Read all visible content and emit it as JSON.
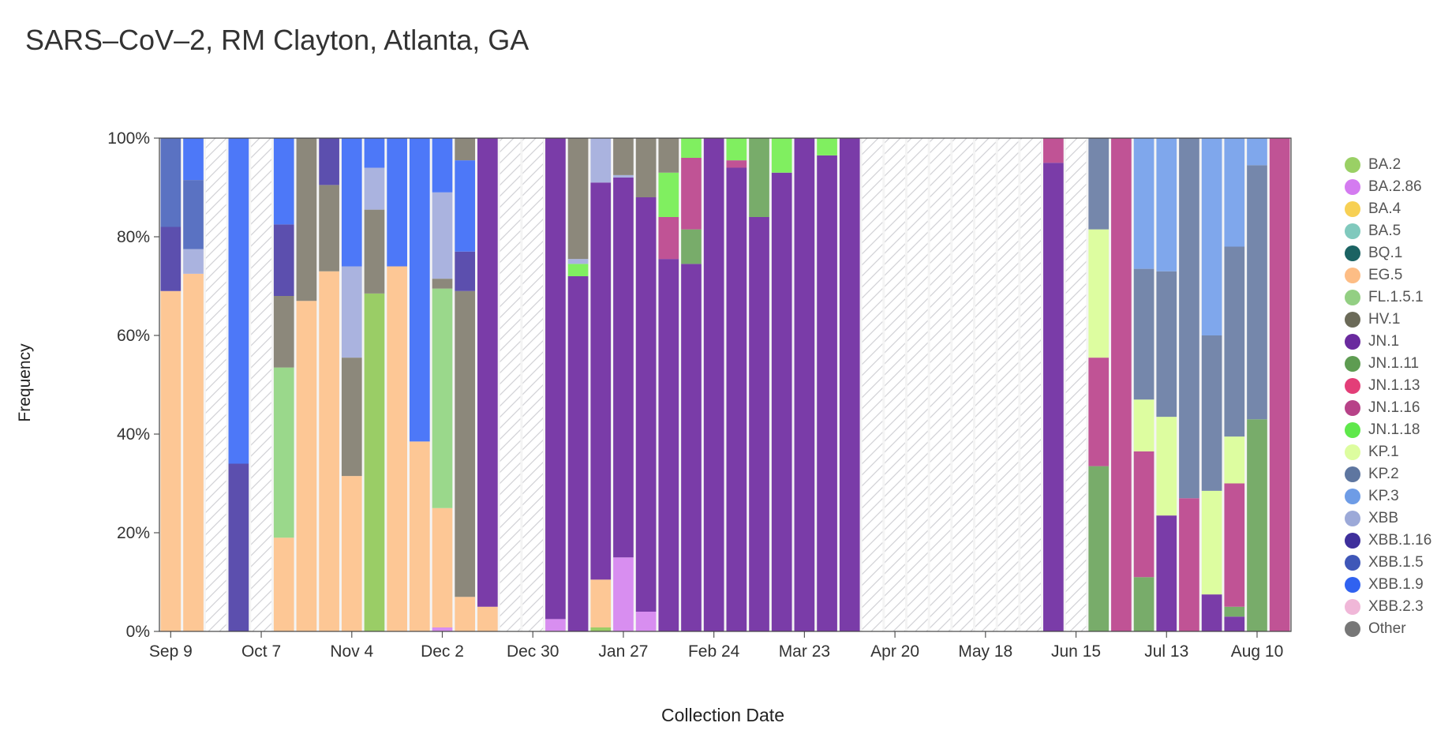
{
  "chart_data": {
    "type": "bar",
    "stacked": true,
    "title": "SARS–CoV–2, RM Clayton, Atlanta, GA",
    "xlabel": "Collection Date",
    "ylabel": "Frequency",
    "ylim": [
      0,
      100
    ],
    "y_ticks": [
      "0%",
      "20%",
      "40%",
      "60%",
      "80%",
      "100%"
    ],
    "x_tick_labels": [
      "Sep 9",
      "Oct 7",
      "Nov 4",
      "Dec 2",
      "Dec 30",
      "Jan 27",
      "Feb 24",
      "Mar 23",
      "Apr 20",
      "May 18",
      "Jun 15",
      "Jul 13",
      "Aug 10"
    ],
    "x_tick_positions": [
      0,
      4,
      8,
      12,
      16,
      20,
      24,
      28,
      32,
      36,
      40,
      44,
      48
    ],
    "num_slots": 50,
    "lineage_colors": {
      "BA.2": "#9acd66",
      "BA.2.86": "#d88ef0",
      "BA.4": "#f7d054",
      "BA.5": "#80c9bd",
      "BQ.1": "#1b6f6f",
      "EG.5": "#fdc795",
      "FL.1.5.1": "#9ad88b",
      "HV.1": "#737060",
      "JN.1": "#7a3ca8",
      "JN.1.11": "#78ac6a",
      "JN.1.13": "#e0427a",
      "JN.1.16": "#c05395",
      "JN.1.18": "#80ef60",
      "KP.1": "#ddfda0",
      "KP.2": "#7587ab",
      "KP.3": "#7fa7ec",
      "XBB": "#aab3df",
      "XBB.1.16": "#5c4fae",
      "XBB.1.5": "#5a72c2",
      "XBB.1.9": "#4d78f8",
      "XBB.2.3": "#f0b7d8",
      "Other": "#8c887b"
    },
    "legend": [
      {
        "label": "BA.2",
        "color": "#9ad065"
      },
      {
        "label": "BA.2.86",
        "color": "#d47bf0"
      },
      {
        "label": "BA.4",
        "color": "#f7d054"
      },
      {
        "label": "BA.5",
        "color": "#80c9bd"
      },
      {
        "label": "BQ.1",
        "color": "#1b6363"
      },
      {
        "label": "EG.5",
        "color": "#fdbd85"
      },
      {
        "label": "FL.1.5.1",
        "color": "#93cf83"
      },
      {
        "label": "HV.1",
        "color": "#6b6a58"
      },
      {
        "label": "JN.1",
        "color": "#6a2a9e"
      },
      {
        "label": "JN.1.11",
        "color": "#5e9c52"
      },
      {
        "label": "JN.1.13",
        "color": "#e33e78"
      },
      {
        "label": "JN.1.16",
        "color": "#b74288"
      },
      {
        "label": "JN.1.18",
        "color": "#5fe84b"
      },
      {
        "label": "KP.1",
        "color": "#ddfd9f"
      },
      {
        "label": "KP.2",
        "color": "#5e76a0"
      },
      {
        "label": "KP.3",
        "color": "#6e9ce6"
      },
      {
        "label": "XBB",
        "color": "#9ca9d8"
      },
      {
        "label": "XBB.1.16",
        "color": "#3e2f9c"
      },
      {
        "label": "XBB.1.5",
        "color": "#3f57b8"
      },
      {
        "label": "XBB.1.9",
        "color": "#3062f0"
      },
      {
        "label": "XBB.2.3",
        "color": "#f0b7d8"
      },
      {
        "label": "Other",
        "color": "#777777"
      }
    ],
    "bars": [
      {
        "slot": 0,
        "segments": [
          {
            "lineage": "EG.5",
            "value": 69
          },
          {
            "lineage": "XBB.1.16",
            "value": 13
          },
          {
            "lineage": "XBB.1.5",
            "value": 18
          }
        ]
      },
      {
        "slot": 1,
        "segments": [
          {
            "lineage": "EG.5",
            "value": 72.5
          },
          {
            "lineage": "XBB",
            "value": 5
          },
          {
            "lineage": "XBB.1.5",
            "value": 14
          },
          {
            "lineage": "XBB.1.9",
            "value": 8.5
          }
        ]
      },
      {
        "slot": 2,
        "nodata": true
      },
      {
        "slot": 3,
        "segments": [
          {
            "lineage": "XBB.1.16",
            "value": 34
          },
          {
            "lineage": "XBB.1.9",
            "value": 66
          }
        ]
      },
      {
        "slot": 4,
        "nodata": true
      },
      {
        "slot": 5,
        "segments": [
          {
            "lineage": "EG.5",
            "value": 19
          },
          {
            "lineage": "FL.1.5.1",
            "value": 34.5
          },
          {
            "lineage": "Other",
            "value": 14.5
          },
          {
            "lineage": "XBB.1.16",
            "value": 14.5
          },
          {
            "lineage": "XBB.1.9",
            "value": 17.5
          }
        ]
      },
      {
        "slot": 6,
        "segments": [
          {
            "lineage": "EG.5",
            "value": 67
          },
          {
            "lineage": "Other",
            "value": 33
          }
        ]
      },
      {
        "slot": 7,
        "segments": [
          {
            "lineage": "EG.5",
            "value": 73
          },
          {
            "lineage": "Other",
            "value": 17.5
          },
          {
            "lineage": "XBB.1.16",
            "value": 9.5
          }
        ]
      },
      {
        "slot": 8,
        "segments": [
          {
            "lineage": "EG.5",
            "value": 31.5
          },
          {
            "lineage": "Other",
            "value": 24
          },
          {
            "lineage": "XBB",
            "value": 18.5
          },
          {
            "lineage": "XBB.1.9",
            "value": 26
          }
        ]
      },
      {
        "slot": 9,
        "segments": [
          {
            "lineage": "BA.2",
            "value": 68.5
          },
          {
            "lineage": "Other",
            "value": 17
          },
          {
            "lineage": "XBB",
            "value": 8.5
          },
          {
            "lineage": "XBB.1.9",
            "value": 6
          }
        ]
      },
      {
        "slot": 10,
        "segments": [
          {
            "lineage": "EG.5",
            "value": 74
          },
          {
            "lineage": "XBB.1.9",
            "value": 26
          }
        ]
      },
      {
        "slot": 11,
        "segments": [
          {
            "lineage": "EG.5",
            "value": 38.5
          },
          {
            "lineage": "XBB.1.9",
            "value": 61.5
          }
        ]
      },
      {
        "slot": 12,
        "segments": [
          {
            "lineage": "BA.2.86",
            "value": 0.8
          },
          {
            "lineage": "EG.5",
            "value": 24.2
          },
          {
            "lineage": "FL.1.5.1",
            "value": 44.5
          },
          {
            "lineage": "Other",
            "value": 2
          },
          {
            "lineage": "XBB",
            "value": 17.5
          },
          {
            "lineage": "XBB.1.9",
            "value": 11
          }
        ]
      },
      {
        "slot": 13,
        "segments": [
          {
            "lineage": "EG.5",
            "value": 7
          },
          {
            "lineage": "Other",
            "value": 62
          },
          {
            "lineage": "XBB.1.16",
            "value": 8
          },
          {
            "lineage": "XBB.1.9",
            "value": 18.5
          },
          {
            "lineage": "Other",
            "value": 4.5
          }
        ]
      },
      {
        "slot": 14,
        "segments": [
          {
            "lineage": "EG.5",
            "value": 5
          },
          {
            "lineage": "JN.1",
            "value": 95
          }
        ]
      },
      {
        "slot": 15,
        "nodata": true
      },
      {
        "slot": 16,
        "nodata": true
      },
      {
        "slot": 17,
        "segments": [
          {
            "lineage": "BA.2.86",
            "value": 2.5
          },
          {
            "lineage": "JN.1",
            "value": 97.5
          }
        ]
      },
      {
        "slot": 18,
        "segments": [
          {
            "lineage": "JN.1",
            "value": 72
          },
          {
            "lineage": "JN.1.18",
            "value": 2.5
          },
          {
            "lineage": "XBB",
            "value": 1
          },
          {
            "lineage": "Other",
            "value": 24.5
          }
        ]
      },
      {
        "slot": 19,
        "segments": [
          {
            "lineage": "BA.2",
            "value": 0.8
          },
          {
            "lineage": "EG.5",
            "value": 9.7
          },
          {
            "lineage": "JN.1",
            "value": 80.5
          },
          {
            "lineage": "XBB",
            "value": 9
          }
        ]
      },
      {
        "slot": 20,
        "segments": [
          {
            "lineage": "BA.2.86",
            "value": 15
          },
          {
            "lineage": "JN.1",
            "value": 77
          },
          {
            "lineage": "XBB",
            "value": 0.5
          },
          {
            "lineage": "Other",
            "value": 7.5
          }
        ]
      },
      {
        "slot": 21,
        "segments": [
          {
            "lineage": "BA.2.86",
            "value": 4
          },
          {
            "lineage": "JN.1",
            "value": 84
          },
          {
            "lineage": "Other",
            "value": 12
          }
        ]
      },
      {
        "slot": 22,
        "segments": [
          {
            "lineage": "JN.1",
            "value": 75.5
          },
          {
            "lineage": "JN.1.16",
            "value": 8.5
          },
          {
            "lineage": "JN.1.18",
            "value": 9
          },
          {
            "lineage": "Other",
            "value": 7
          }
        ]
      },
      {
        "slot": 23,
        "segments": [
          {
            "lineage": "JN.1",
            "value": 74.5
          },
          {
            "lineage": "JN.1.11",
            "value": 7
          },
          {
            "lineage": "JN.1.16",
            "value": 14.5
          },
          {
            "lineage": "JN.1.18",
            "value": 4
          }
        ]
      },
      {
        "slot": 24,
        "segments": [
          {
            "lineage": "JN.1",
            "value": 100
          }
        ]
      },
      {
        "slot": 25,
        "segments": [
          {
            "lineage": "JN.1",
            "value": 94
          },
          {
            "lineage": "JN.1.16",
            "value": 1.5
          },
          {
            "lineage": "JN.1.18",
            "value": 4.5
          }
        ]
      },
      {
        "slot": 26,
        "segments": [
          {
            "lineage": "JN.1",
            "value": 84
          },
          {
            "lineage": "JN.1.11",
            "value": 16
          }
        ]
      },
      {
        "slot": 27,
        "segments": [
          {
            "lineage": "JN.1",
            "value": 93
          },
          {
            "lineage": "JN.1.18",
            "value": 7
          }
        ]
      },
      {
        "slot": 28,
        "segments": [
          {
            "lineage": "JN.1",
            "value": 100
          }
        ]
      },
      {
        "slot": 29,
        "segments": [
          {
            "lineage": "JN.1",
            "value": 96.5
          },
          {
            "lineage": "JN.1.18",
            "value": 3.5
          }
        ]
      },
      {
        "slot": 30,
        "segments": [
          {
            "lineage": "JN.1",
            "value": 100
          }
        ]
      },
      {
        "slot": 31,
        "nodata": true
      },
      {
        "slot": 32,
        "nodata": true
      },
      {
        "slot": 33,
        "nodata": true
      },
      {
        "slot": 34,
        "nodata": true
      },
      {
        "slot": 35,
        "nodata": true
      },
      {
        "slot": 36,
        "nodata": true
      },
      {
        "slot": 37,
        "nodata": true
      },
      {
        "slot": 38,
        "nodata": true
      },
      {
        "slot": 39,
        "segments": [
          {
            "lineage": "JN.1",
            "value": 95
          },
          {
            "lineage": "JN.1.16",
            "value": 5
          }
        ]
      },
      {
        "slot": 40,
        "nodata": true
      },
      {
        "slot": 41,
        "segments": [
          {
            "lineage": "JN.1.11",
            "value": 33.5
          },
          {
            "lineage": "JN.1.16",
            "value": 22
          },
          {
            "lineage": "KP.1",
            "value": 26
          },
          {
            "lineage": "KP.2",
            "value": 18.5
          }
        ]
      },
      {
        "slot": 42,
        "segments": [
          {
            "lineage": "JN.1.16",
            "value": 100
          }
        ]
      },
      {
        "slot": 43,
        "segments": [
          {
            "lineage": "JN.1.11",
            "value": 11
          },
          {
            "lineage": "JN.1.16",
            "value": 25.5
          },
          {
            "lineage": "KP.1",
            "value": 10.5
          },
          {
            "lineage": "KP.2",
            "value": 26.5
          },
          {
            "lineage": "KP.3",
            "value": 26.5
          }
        ]
      },
      {
        "slot": 44,
        "segments": [
          {
            "lineage": "JN.1",
            "value": 23.5
          },
          {
            "lineage": "KP.1",
            "value": 20
          },
          {
            "lineage": "KP.2",
            "value": 29.5
          },
          {
            "lineage": "KP.3",
            "value": 27
          }
        ]
      },
      {
        "slot": 45,
        "segments": [
          {
            "lineage": "JN.1.16",
            "value": 27
          },
          {
            "lineage": "KP.2",
            "value": 73
          }
        ]
      },
      {
        "slot": 46,
        "segments": [
          {
            "lineage": "JN.1",
            "value": 7.5
          },
          {
            "lineage": "KP.1",
            "value": 21
          },
          {
            "lineage": "KP.2",
            "value": 31.5
          },
          {
            "lineage": "KP.3",
            "value": 40
          }
        ]
      },
      {
        "slot": 47,
        "segments": [
          {
            "lineage": "JN.1",
            "value": 3
          },
          {
            "lineage": "JN.1.11",
            "value": 2
          },
          {
            "lineage": "JN.1.16",
            "value": 25
          },
          {
            "lineage": "KP.1",
            "value": 9.5
          },
          {
            "lineage": "KP.2",
            "value": 38.5
          },
          {
            "lineage": "KP.3",
            "value": 22
          }
        ]
      },
      {
        "slot": 48,
        "segments": [
          {
            "lineage": "JN.1.11",
            "value": 43
          },
          {
            "lineage": "KP.2",
            "value": 51.5
          },
          {
            "lineage": "KP.3",
            "value": 5.5
          }
        ]
      },
      {
        "slot": 49,
        "segments": [
          {
            "lineage": "JN.1.16",
            "value": 100
          }
        ]
      }
    ]
  }
}
